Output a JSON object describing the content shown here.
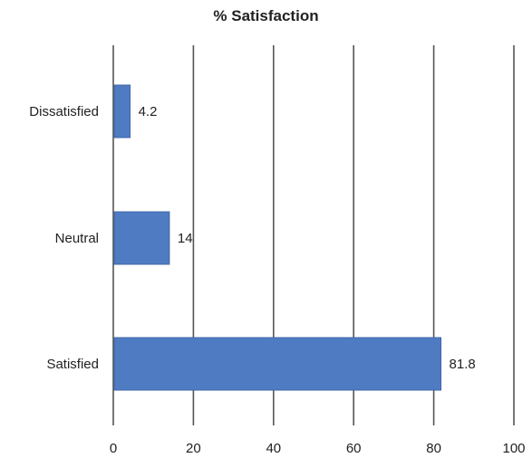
{
  "chart_data": {
    "type": "bar",
    "orientation": "horizontal",
    "title": "% Satisfaction",
    "categories": [
      "Dissatisfied",
      "Neutral",
      "Satisfied"
    ],
    "values": [
      4.2,
      14,
      81.8
    ],
    "value_labels": [
      "4.2",
      "14",
      "81.8"
    ],
    "xlim": [
      0,
      100
    ],
    "x_ticks": [
      0,
      20,
      40,
      60,
      80,
      100
    ],
    "grid": "vertical",
    "legend": "none",
    "bar_color": "#4f7bc3",
    "grid_color": "#555555"
  }
}
